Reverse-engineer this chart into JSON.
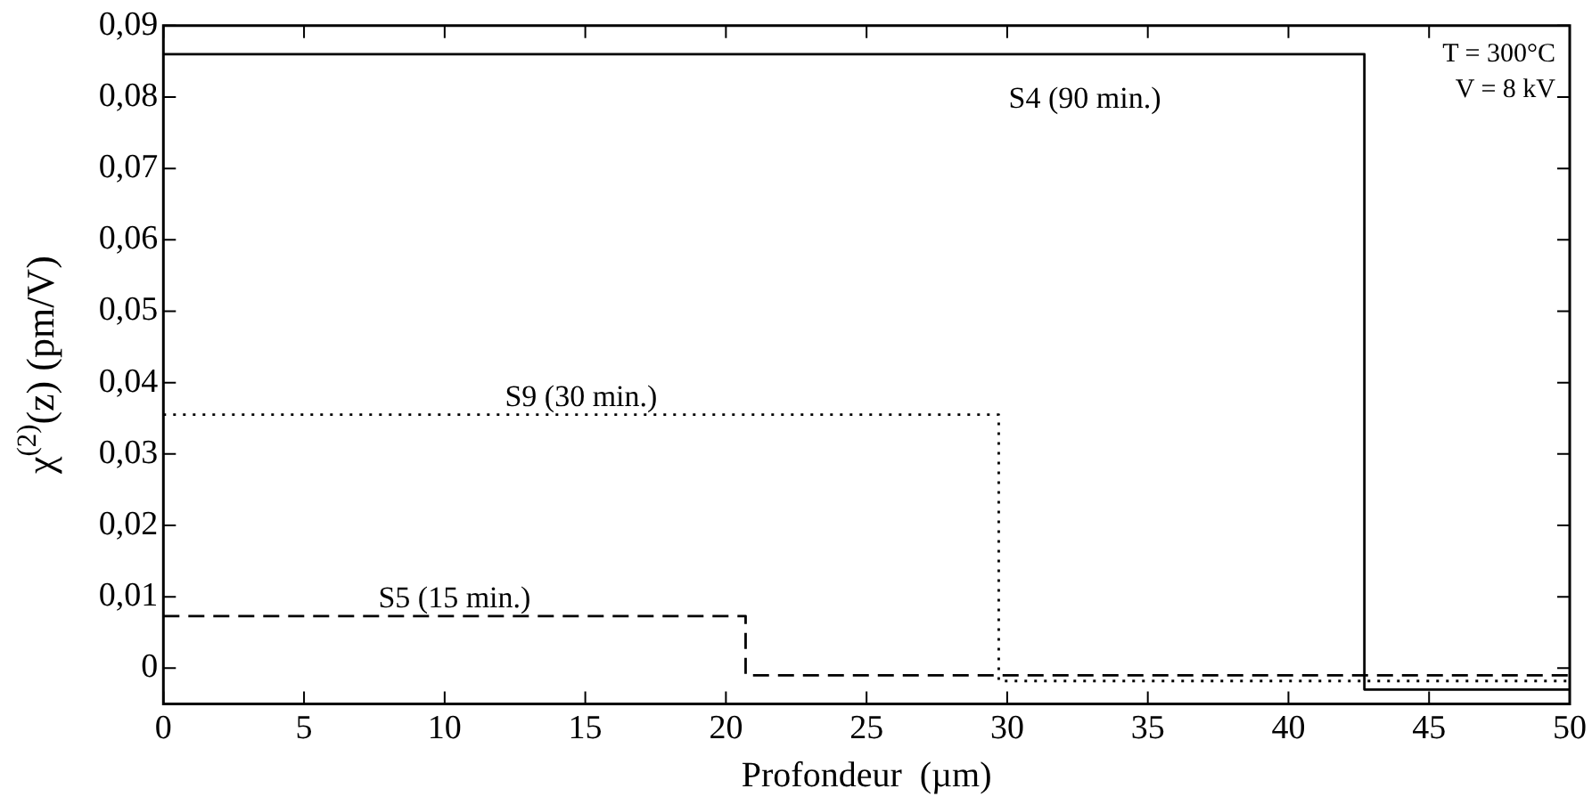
{
  "chart_data": {
    "type": "step",
    "xlabel": "Profondeur  (µm)",
    "ylabel": "χ$^{(2)}$(z) (pm/V)",
    "series": [
      {
        "name": "S4 (90 min.)",
        "color": "#000000",
        "line_style": "solid",
        "x": [
          0,
          42.7,
          50
        ],
        "values": [
          0.086,
          0.086,
          -0.003
        ]
      },
      {
        "name": "S9 (30 min.)",
        "color": "#000000",
        "line_style": "dotted",
        "x": [
          0,
          29.7,
          50
        ],
        "values": [
          0.0355,
          0.0355,
          -0.0018
        ]
      },
      {
        "name": "S5 (15 min.)",
        "color": "#000000",
        "line_style": "dashed",
        "x": [
          0,
          20.7,
          50
        ],
        "values": [
          0.0073,
          0.0073,
          -0.001
        ]
      }
    ],
    "xlim": [
      0,
      50
    ],
    "xticks": [
      0,
      5,
      10,
      15,
      20,
      25,
      30,
      35,
      40,
      45,
      50
    ],
    "ylim": [
      -0.005,
      0.09
    ],
    "yticks": [
      {
        "value": 0,
        "label": "0"
      },
      {
        "value": 0.01,
        "label": "0,01"
      },
      {
        "value": 0.02,
        "label": "0,02"
      },
      {
        "value": 0.03,
        "label": "0,03"
      },
      {
        "value": 0.04,
        "label": "0,04"
      },
      {
        "value": 0.05,
        "label": "0,05"
      },
      {
        "value": 0.06,
        "label": "0,06"
      },
      {
        "value": 0.07,
        "label": "0,07"
      },
      {
        "value": 0.08,
        "label": "0,08"
      },
      {
        "value": 0.09,
        "label": "0,09"
      }
    ],
    "annotations": [
      "T = 300°C",
      "V = 8 kV"
    ],
    "grid": false,
    "legend": false
  }
}
